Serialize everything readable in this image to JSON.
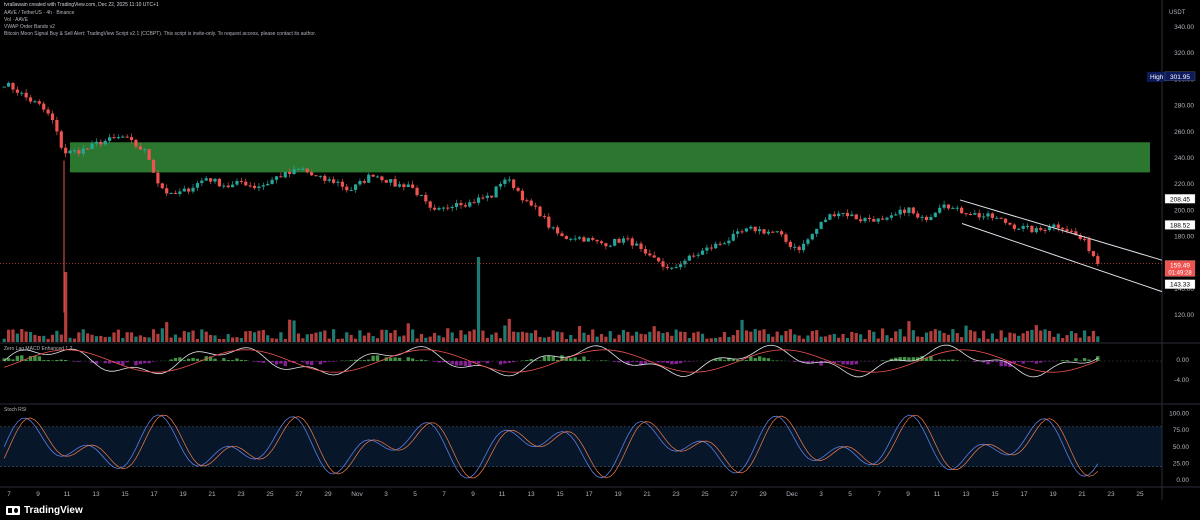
{
  "header": {
    "created": "Dec 22, 2025 11:10 UTC+1",
    "symbol": "AAVE / TetherUS · 4h · Binance",
    "vol": "Vol · AAVE",
    "vwap": "VWAP Order Bands v2",
    "script": "Bitcoin Moon Signal Buy & Sell Alert: TradingView Script v2.1 (CCBPT). This script is invite-only. To request access, please contact its author."
  },
  "axis_unit": "USDT",
  "panes": {
    "macd": "Zero Lag MACD Enhanced 1.2",
    "stoch": "Stoch RSI"
  },
  "logo": "TradingView",
  "colors": {
    "bull": "#26a69a",
    "bear": "#ef5350",
    "zone": "#2e7d32",
    "bg": "#000000"
  },
  "chart_data": {
    "type": "candlestick",
    "price_axis": {
      "ticks": [
        340,
        320,
        300,
        280,
        260,
        240,
        220,
        200,
        180,
        160,
        140,
        120
      ],
      "labels": [
        "340.00",
        "320.00",
        "300.00",
        "280.00",
        "260.00",
        "240.00",
        "220.00",
        "200.00",
        "180.00",
        "160.00",
        "140.00",
        "120.00"
      ]
    },
    "price_labels": [
      {
        "name": "High",
        "value": "301.95"
      },
      {
        "value": "208.45"
      },
      {
        "value": "188.52"
      },
      {
        "value": "159.49",
        "sub": "01:49:28",
        "current": true
      },
      {
        "value": "143.33"
      }
    ],
    "x_ticks": [
      "7",
      "9",
      "11",
      "13",
      "15",
      "17",
      "19",
      "21",
      "23",
      "25",
      "27",
      "29",
      "Nov",
      "3",
      "5",
      "7",
      "9",
      "11",
      "13",
      "15",
      "17",
      "19",
      "21",
      "23",
      "25",
      "27",
      "29",
      "Dec",
      "3",
      "5",
      "7",
      "9",
      "11",
      "13",
      "15",
      "17",
      "19",
      "21",
      "23",
      "25"
    ],
    "resistance_zone": [
      229,
      252
    ],
    "descending_channel": {
      "upper": [
        [
          208,
          192
        ],
        [
          208,
          162
        ]
      ],
      "lower": [
        [
          190,
          166
        ],
        [
          190,
          138
        ]
      ]
    },
    "price_path": [
      297,
      292,
      285,
      280,
      270,
      244,
      245,
      247,
      252,
      254,
      256,
      250,
      244,
      220,
      211,
      214,
      219,
      225,
      221,
      218,
      222,
      218,
      220,
      226,
      228,
      232,
      226,
      223,
      222,
      215,
      221,
      228,
      224,
      219,
      220,
      211,
      198,
      201,
      207,
      205,
      209,
      211,
      225,
      218,
      205,
      199,
      186,
      179,
      180,
      178,
      175,
      175,
      178,
      175,
      164,
      162,
      153,
      161,
      165,
      170,
      174,
      178,
      183,
      186,
      184,
      183,
      174,
      171,
      182,
      193,
      199,
      197,
      193,
      194,
      191,
      196,
      202,
      192,
      197,
      207,
      200,
      199,
      196,
      195,
      192,
      188,
      186,
      184,
      189,
      188,
      182,
      175,
      160
    ],
    "macd_pane": {
      "ticks": [
        "0.00",
        "-4.00"
      ]
    },
    "stoch_pane": {
      "ticks": [
        "100.00",
        "75.00",
        "50.00",
        "25.00",
        "0.00"
      ]
    }
  }
}
